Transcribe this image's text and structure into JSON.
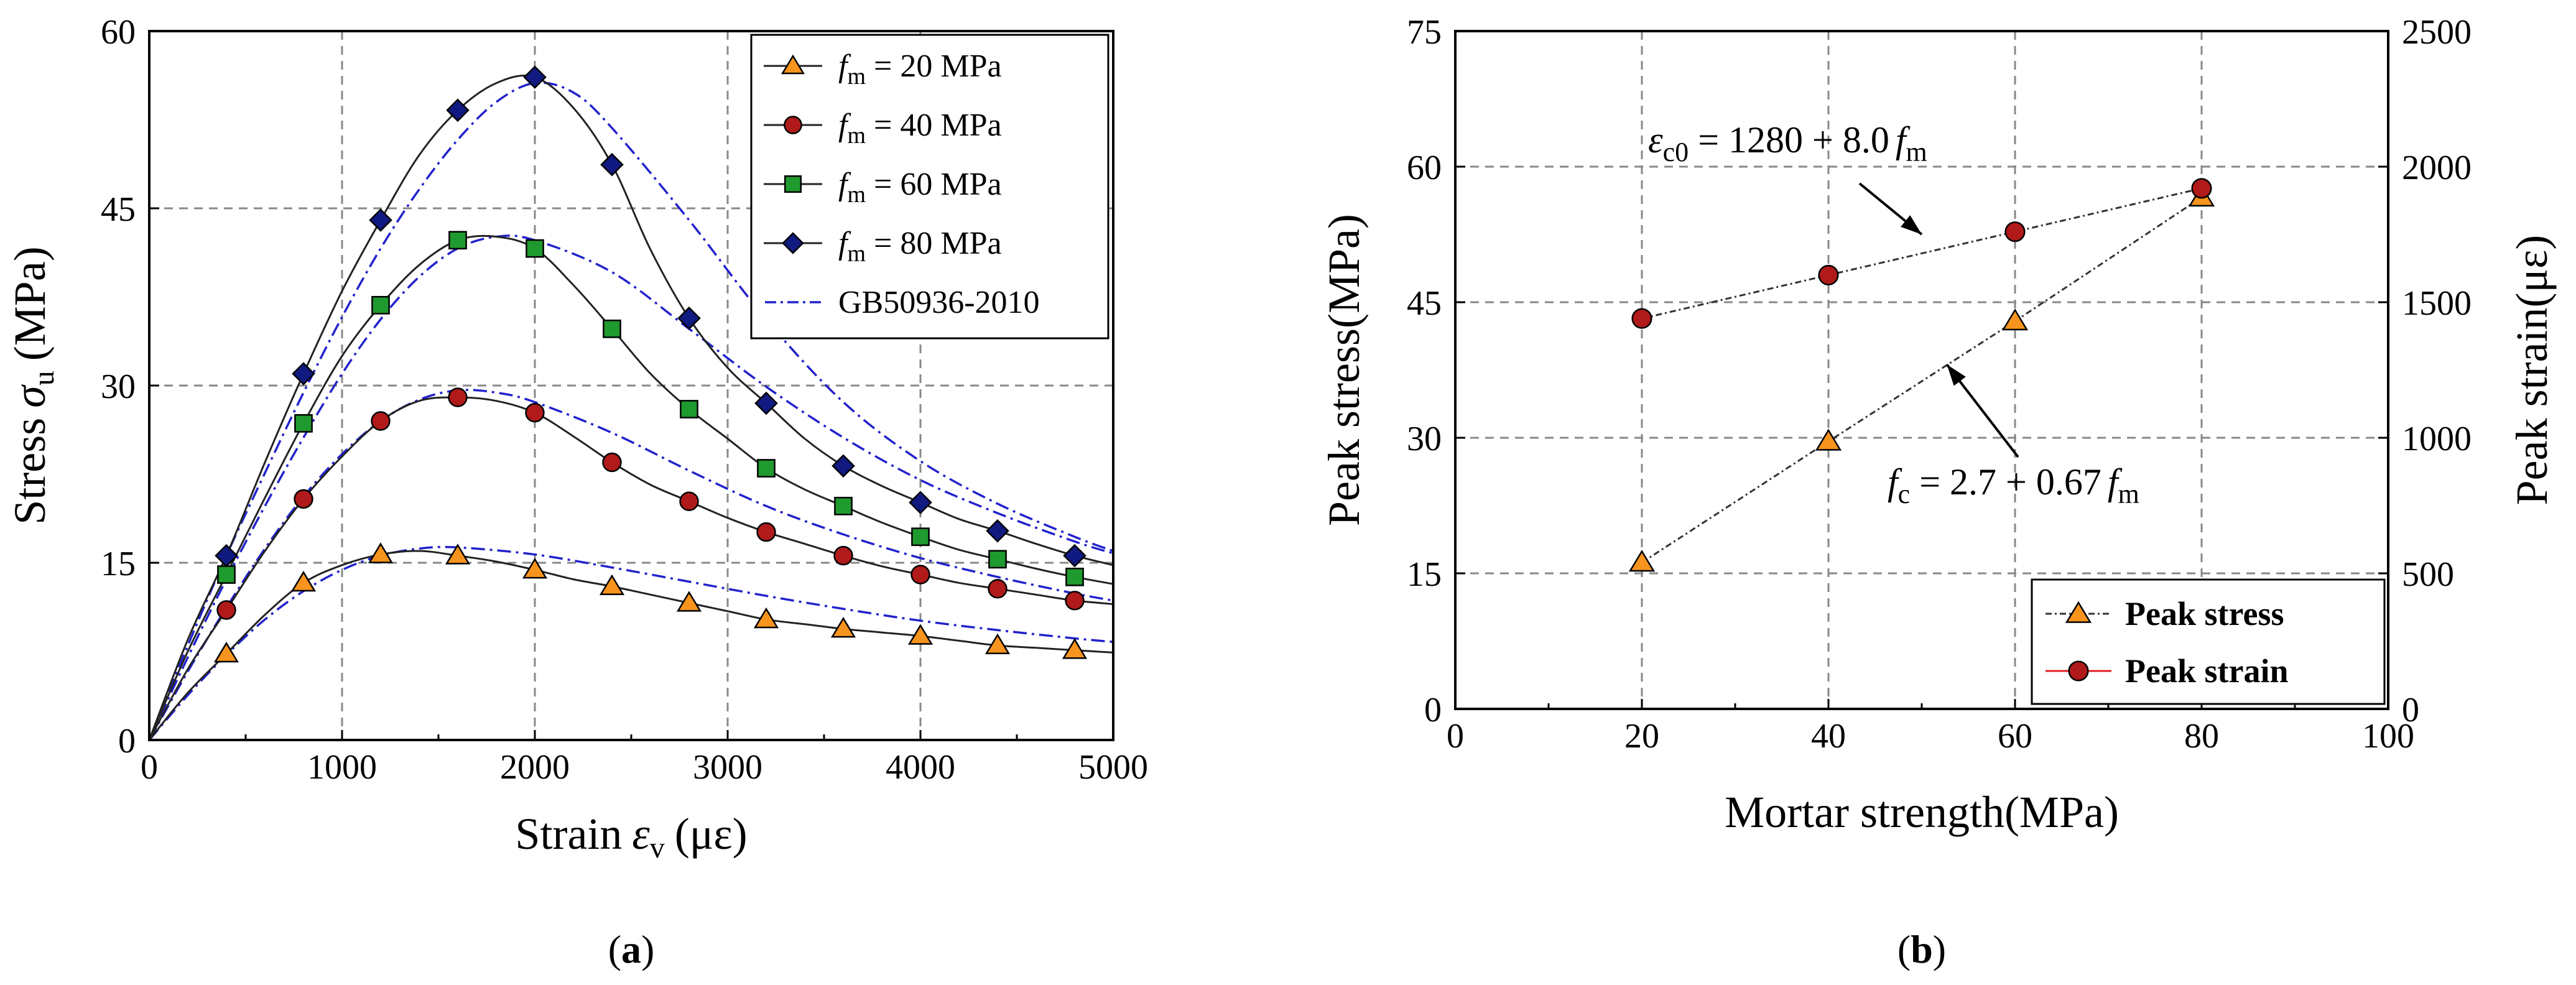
{
  "chart_data": [
    {
      "panel_label": "a",
      "type": "line",
      "title": "",
      "xlabel": {
        "text": "Strain",
        "symbol": "ε",
        "subscript": "v",
        "unit": "(με)"
      },
      "ylabel": {
        "text": "Stress",
        "symbol": "σ",
        "subscript": "u",
        "unit": "(MPa)"
      },
      "xlim": [
        0,
        5000
      ],
      "ylim": [
        0,
        60
      ],
      "xticks": [
        "0",
        "1000",
        "2000",
        "3000",
        "4000",
        "5000"
      ],
      "yticks": [
        "0",
        "15",
        "30",
        "45",
        "60"
      ],
      "grid": true,
      "legend_position": "top-right",
      "series": [
        {
          "name": "f_m = 20 MPa",
          "legend_prefix": "f",
          "legend_sub": "m",
          "legend_suffix": " = 20 MPa",
          "marker": "triangle",
          "color": "#f7941d",
          "x": [
            0,
            200,
            400,
            600,
            800,
            1000,
            1200,
            1400,
            1600,
            1800,
            2000,
            2200,
            2400,
            2600,
            2800,
            3000,
            3200,
            3400,
            3600,
            3800,
            4000,
            4200,
            4400,
            4600,
            4800,
            5000
          ],
          "y": [
            0,
            4.0,
            7.3,
            10.6,
            13.3,
            14.8,
            15.7,
            16.0,
            15.6,
            15.1,
            14.4,
            13.6,
            13.0,
            12.3,
            11.6,
            10.9,
            10.2,
            9.8,
            9.4,
            9.1,
            8.8,
            8.4,
            8.0,
            7.8,
            7.6,
            7.4
          ],
          "marker_x": [
            400,
            800,
            1200,
            1600,
            2000,
            2400,
            2800,
            3200,
            3600,
            4000,
            4400,
            4800
          ],
          "marker_y": [
            7.3,
            13.3,
            15.7,
            15.6,
            14.4,
            13.0,
            11.6,
            10.2,
            9.4,
            8.8,
            8.0,
            7.6
          ]
        },
        {
          "name": "f_m = 40 MPa",
          "legend_prefix": "f",
          "legend_sub": "m",
          "legend_suffix": " = 40 MPa",
          "marker": "circle",
          "color": "#b01a1a",
          "x": [
            0,
            200,
            400,
            600,
            800,
            1000,
            1200,
            1400,
            1600,
            1800,
            2000,
            2200,
            2400,
            2600,
            2800,
            3000,
            3200,
            3400,
            3600,
            3800,
            4000,
            4200,
            4400,
            4600,
            4800,
            5000
          ],
          "y": [
            0,
            6.0,
            11.0,
            16.0,
            20.4,
            24.0,
            27.0,
            28.7,
            29.0,
            28.7,
            27.7,
            25.7,
            23.5,
            21.6,
            20.2,
            18.8,
            17.6,
            16.6,
            15.6,
            14.7,
            14.0,
            13.3,
            12.8,
            12.3,
            11.8,
            11.5
          ],
          "marker_x": [
            400,
            800,
            1200,
            1600,
            2000,
            2400,
            2800,
            3200,
            3600,
            4000,
            4400,
            4800
          ],
          "marker_y": [
            11.0,
            20.4,
            27.0,
            29.0,
            27.7,
            23.5,
            20.2,
            17.6,
            15.6,
            14.0,
            12.8,
            11.8
          ]
        },
        {
          "name": "f_m = 60 MPa",
          "legend_prefix": "f",
          "legend_sub": "m",
          "legend_suffix": " = 60 MPa",
          "marker": "square",
          "color": "#1f9a2f",
          "x": [
            0,
            200,
            400,
            600,
            800,
            1000,
            1200,
            1400,
            1600,
            1800,
            2000,
            2200,
            2400,
            2600,
            2800,
            3000,
            3200,
            3400,
            3600,
            3800,
            4000,
            4200,
            4400,
            4600,
            4800,
            5000
          ],
          "y": [
            0,
            7.5,
            14.0,
            20.5,
            26.8,
            32.5,
            36.8,
            40.2,
            42.3,
            42.6,
            41.6,
            38.5,
            34.8,
            31.0,
            28.0,
            25.5,
            23.0,
            21.2,
            19.8,
            18.4,
            17.2,
            16.1,
            15.3,
            14.5,
            13.8,
            13.2
          ],
          "marker_x": [
            400,
            800,
            1200,
            1600,
            2000,
            2400,
            2800,
            3200,
            3600,
            4000,
            4400,
            4800
          ],
          "marker_y": [
            14.0,
            26.8,
            36.8,
            42.3,
            41.6,
            34.8,
            28.0,
            23.0,
            19.8,
            17.2,
            15.3,
            13.8
          ]
        },
        {
          "name": "f_m = 80 MPa",
          "legend_prefix": "f",
          "legend_sub": "m",
          "legend_suffix": " = 80 MPa",
          "marker": "diamond",
          "color": "#101a80",
          "x": [
            0,
            200,
            400,
            600,
            800,
            1000,
            1200,
            1400,
            1600,
            1800,
            2000,
            2200,
            2400,
            2600,
            2800,
            3000,
            3200,
            3400,
            3600,
            3800,
            4000,
            4200,
            4400,
            4600,
            4800,
            5000
          ],
          "y": [
            0,
            8.5,
            15.6,
            23.5,
            31.0,
            38.0,
            44.0,
            49.5,
            53.3,
            55.6,
            56.1,
            53.5,
            48.7,
            41.5,
            35.7,
            31.5,
            28.5,
            25.5,
            23.2,
            21.5,
            20.1,
            18.7,
            17.7,
            16.6,
            15.6,
            14.8
          ],
          "marker_x": [
            400,
            800,
            1200,
            1600,
            2000,
            2400,
            2800,
            3200,
            3600,
            4000,
            4400,
            4800
          ],
          "marker_y": [
            15.6,
            31.0,
            44.0,
            53.3,
            56.1,
            48.7,
            35.7,
            28.5,
            23.2,
            20.1,
            17.7,
            15.6
          ]
        }
      ],
      "reference_curves": {
        "name": "GB50936-2010",
        "style": "dash-dot",
        "color": "#2222cc",
        "curves": [
          {
            "x": [
              0,
              200,
              400,
              600,
              800,
              1000,
              1200,
              1400,
              1600,
              2000,
              2400,
              2800,
              3200,
              3600,
              4000,
              4400,
              4800,
              5000
            ],
            "y": [
              0,
              3.8,
              7.2,
              10.2,
              12.6,
              14.4,
              15.6,
              16.2,
              16.3,
              15.7,
              14.6,
              13.4,
              12.2,
              11.1,
              10.1,
              9.3,
              8.6,
              8.3
            ]
          },
          {
            "x": [
              0,
              200,
              400,
              600,
              800,
              1000,
              1200,
              1400,
              1600,
              1800,
              2000,
              2400,
              2800,
              3200,
              3600,
              4000,
              4400,
              4800,
              5000
            ],
            "y": [
              0,
              5.8,
              11.2,
              16.2,
              20.6,
              24.2,
              27.0,
              28.8,
              29.6,
              29.4,
              28.6,
              26.0,
              22.8,
              19.8,
              17.4,
              15.4,
              13.8,
              12.4,
              11.8
            ]
          },
          {
            "x": [
              0,
              200,
              400,
              600,
              800,
              1000,
              1200,
              1400,
              1600,
              1800,
              2000,
              2400,
              2800,
              3200,
              3600,
              4000,
              4400,
              4800,
              5000
            ],
            "y": [
              0,
              7.0,
              13.6,
              19.8,
              25.6,
              31.0,
              35.6,
              39.2,
              41.6,
              42.6,
              42.3,
              39.6,
              34.8,
              29.9,
              25.6,
              22.0,
              19.2,
              16.8,
              15.8
            ]
          },
          {
            "x": [
              0,
              200,
              400,
              600,
              800,
              1000,
              1200,
              1400,
              1600,
              1800,
              2000,
              2200,
              2400,
              2800,
              3200,
              3600,
              4000,
              4400,
              4800,
              5000
            ],
            "y": [
              0,
              8.0,
              15.6,
              22.6,
              29.4,
              35.8,
              41.6,
              46.6,
              50.8,
              54.0,
              55.6,
              54.8,
              51.8,
              44.0,
              35.6,
              28.6,
              23.6,
              20.0,
              17.2,
              16.0
            ]
          }
        ]
      },
      "legend": [
        {
          "prefix": "f",
          "sub": "m",
          "suffix": " = 20 MPa",
          "marker": "triangle",
          "color": "#f7941d"
        },
        {
          "prefix": "f",
          "sub": "m",
          "suffix": " = 40 MPa",
          "marker": "circle",
          "color": "#b01a1a"
        },
        {
          "prefix": "f",
          "sub": "m",
          "suffix": " = 60 MPa",
          "marker": "square",
          "color": "#1f9a2f"
        },
        {
          "prefix": "f",
          "sub": "m",
          "suffix": " = 80 MPa",
          "marker": "diamond",
          "color": "#101a80"
        },
        {
          "prefix": "",
          "sub": "",
          "suffix": "GB50936-2010",
          "marker": "dashdot",
          "color": "#2222cc"
        }
      ]
    },
    {
      "panel_label": "b",
      "type": "line",
      "title": "",
      "xlabel": "Mortar strength(MPa)",
      "ylabel": "Peak stress(MPa)",
      "y2label": "Peak strain(με)",
      "xlim": [
        0,
        100
      ],
      "ylim": [
        0,
        75
      ],
      "y2lim": [
        0,
        2500
      ],
      "xticks": [
        "0",
        "20",
        "40",
        "60",
        "80",
        "100"
      ],
      "yticks": [
        "0",
        "15",
        "30",
        "45",
        "60",
        "75"
      ],
      "y2ticks": [
        "0",
        "500",
        "1000",
        "1500",
        "2000",
        "2500"
      ],
      "grid": true,
      "legend_position": "bottom-right",
      "series": [
        {
          "name": "Peak stress",
          "axis": "left",
          "marker": "triangle",
          "color": "#f7941d",
          "x": [
            20,
            40,
            60,
            80
          ],
          "y": [
            16.2,
            29.6,
            42.9,
            56.6
          ]
        },
        {
          "name": "Peak strain",
          "axis": "right",
          "marker": "circle",
          "color": "#b01a1a",
          "x": [
            20,
            40,
            60,
            80
          ],
          "y": [
            1440,
            1600,
            1760,
            1920
          ]
        }
      ],
      "annotations": [
        {
          "lhs_symbol": "ε",
          "lhs_sub": "c0",
          "rhs": " = 1280 + 8.0",
          "rhs_symbol": "f",
          "rhs_sub": "m",
          "arrow_to": {
            "x": 50,
            "y": 52.5
          }
        },
        {
          "lhs_symbol": "f",
          "lhs_sub": "c",
          "rhs": " = 2.7 + 0.67",
          "rhs_symbol": "f",
          "rhs_sub": "m",
          "arrow_to": {
            "x": 52.7,
            "y": 38.1
          }
        }
      ]
    }
  ]
}
